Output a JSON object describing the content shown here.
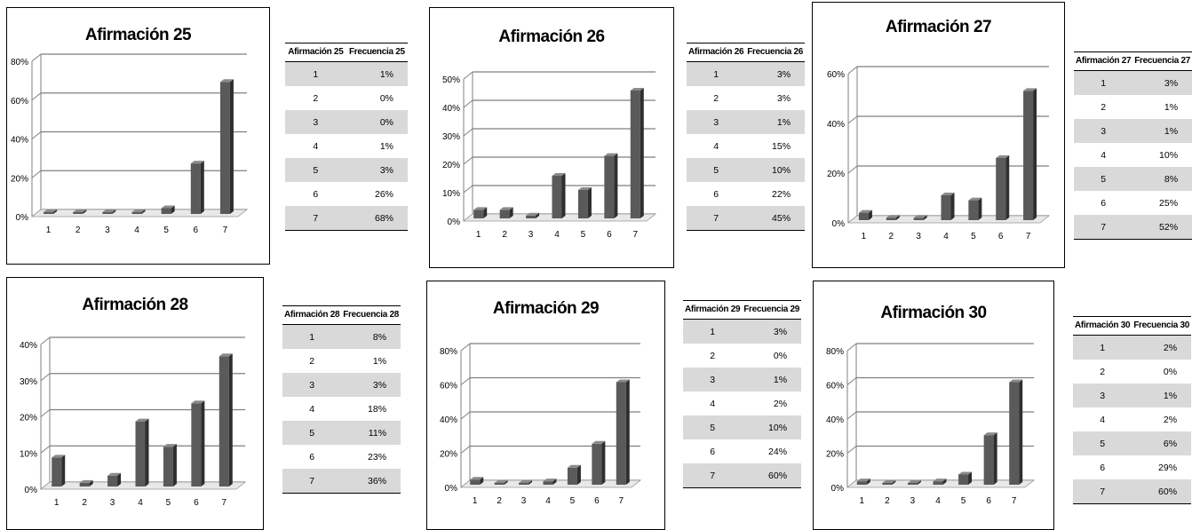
{
  "chart_data": [
    {
      "type": "bar",
      "title": "Afirmación 25",
      "categories": [
        "1",
        "2",
        "3",
        "4",
        "5",
        "6",
        "7"
      ],
      "values": [
        1,
        0,
        0,
        1,
        3,
        26,
        68
      ],
      "ymax": 80,
      "yticks": [
        0,
        20,
        40,
        60,
        80
      ],
      "table": {
        "col1": "Afirmación 25",
        "col2": "Frecuencia 25",
        "labels": [
          "1%",
          "0%",
          "0%",
          "1%",
          "3%",
          "26%",
          "68%"
        ]
      }
    },
    {
      "type": "bar",
      "title": "Afirmación 26",
      "categories": [
        "1",
        "2",
        "3",
        "4",
        "5",
        "6",
        "7"
      ],
      "values": [
        3,
        3,
        1,
        15,
        10,
        22,
        45
      ],
      "ymax": 50,
      "yticks": [
        0,
        10,
        20,
        30,
        40,
        50
      ],
      "table": {
        "col1": "Afirmación 26",
        "col2": "Frecuencia 26",
        "labels": [
          "3%",
          "3%",
          "1%",
          "15%",
          "10%",
          "22%",
          "45%"
        ]
      }
    },
    {
      "type": "bar",
      "title": "Afirmación 27",
      "categories": [
        "1",
        "2",
        "3",
        "4",
        "5",
        "6",
        "7"
      ],
      "values": [
        3,
        1,
        1,
        10,
        8,
        25,
        52
      ],
      "ymax": 60,
      "yticks": [
        0,
        20,
        40,
        60
      ],
      "table": {
        "col1": "Afirmación 27",
        "col2": "Frecuencia 27",
        "labels": [
          "3%",
          "1%",
          "1%",
          "10%",
          "8%",
          "25%",
          "52%"
        ]
      }
    },
    {
      "type": "bar",
      "title": "Afirmación 28",
      "categories": [
        "1",
        "2",
        "3",
        "4",
        "5",
        "6",
        "7"
      ],
      "values": [
        8,
        1,
        3,
        18,
        11,
        23,
        36
      ],
      "ymax": 40,
      "yticks": [
        0,
        10,
        20,
        30,
        40
      ],
      "table": {
        "col1": "Afirmación 28",
        "col2": "Frecuencia 28",
        "labels": [
          "8%",
          "1%",
          "3%",
          "18%",
          "11%",
          "23%",
          "36%"
        ]
      }
    },
    {
      "type": "bar",
      "title": "Afirmación 29",
      "categories": [
        "1",
        "2",
        "3",
        "4",
        "5",
        "6",
        "7"
      ],
      "values": [
        3,
        0,
        1,
        2,
        10,
        24,
        60
      ],
      "ymax": 80,
      "yticks": [
        0,
        20,
        40,
        60,
        80
      ],
      "table": {
        "col1": "Afirmación 29",
        "col2": "Frecuencia 29",
        "labels": [
          "3%",
          "0%",
          "1%",
          "2%",
          "10%",
          "24%",
          "60%"
        ]
      }
    },
    {
      "type": "bar",
      "title": "Afirmación 30",
      "categories": [
        "1",
        "2",
        "3",
        "4",
        "5",
        "6",
        "7"
      ],
      "values": [
        2,
        0,
        1,
        2,
        6,
        29,
        60
      ],
      "ymax": 80,
      "yticks": [
        0,
        20,
        40,
        60,
        80
      ],
      "table": {
        "col1": "Afirmación 30",
        "col2": "Frecuencia 30",
        "labels": [
          "2%",
          "0%",
          "1%",
          "2%",
          "6%",
          "29%",
          "60%"
        ]
      }
    }
  ],
  "colors": {
    "bar_front": "#5a5a5a",
    "bar_top": "#8a8a8a",
    "bar_side": "#2e2e2e",
    "grid": "#7f7f7f",
    "floor": "#e8e8e8",
    "table_shade": "#d9d9d9"
  }
}
